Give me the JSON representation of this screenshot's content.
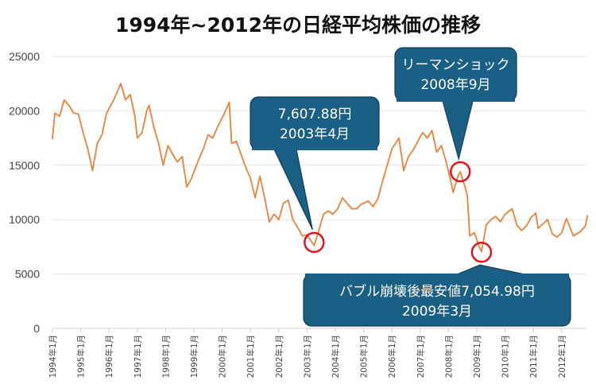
{
  "chart_data": {
    "type": "line",
    "title": "1994年~2012年の日経平均株価の推移",
    "xlabel": "",
    "ylabel": "",
    "ylim": [
      0,
      25000
    ],
    "yticks": [
      0,
      5000,
      10000,
      15000,
      20000,
      25000
    ],
    "xtick_labels": [
      "1994年1月",
      "1995年1月",
      "1996年1月",
      "1997年1月",
      "1998年1月",
      "1999年1月",
      "2000年1月",
      "2001年1月",
      "2002年1月",
      "2003年1月",
      "2004年1月",
      "2005年1月",
      "2006年1月",
      "2007年1月",
      "2008年1月",
      "2009年1月",
      "2010年1月",
      "2011年1月",
      "2012年1月"
    ],
    "grid": "horizontal",
    "line_color": "#e8823a",
    "points": [
      [
        "1994-01",
        17400
      ],
      [
        "1994-02",
        19800
      ],
      [
        "1994-04",
        19500
      ],
      [
        "1994-06",
        21000
      ],
      [
        "1994-08",
        20500
      ],
      [
        "1994-10",
        19800
      ],
      [
        "1994-12",
        19700
      ],
      [
        "1995-02",
        18000
      ],
      [
        "1995-04",
        16500
      ],
      [
        "1995-06",
        14500
      ],
      [
        "1995-08",
        17000
      ],
      [
        "1995-10",
        17800
      ],
      [
        "1995-12",
        19800
      ],
      [
        "1996-03",
        21000
      ],
      [
        "1996-06",
        22500
      ],
      [
        "1996-08",
        21000
      ],
      [
        "1996-10",
        21500
      ],
      [
        "1996-12",
        19500
      ],
      [
        "1997-01",
        17500
      ],
      [
        "1997-03",
        18000
      ],
      [
        "1997-05",
        20000
      ],
      [
        "1997-06",
        20500
      ],
      [
        "1997-08",
        18500
      ],
      [
        "1997-10",
        17000
      ],
      [
        "1997-12",
        15000
      ],
      [
        "1998-02",
        16800
      ],
      [
        "1998-04",
        16000
      ],
      [
        "1998-06",
        15300
      ],
      [
        "1998-08",
        15800
      ],
      [
        "1998-10",
        13000
      ],
      [
        "1998-12",
        13800
      ],
      [
        "1999-03",
        15500
      ],
      [
        "1999-05",
        16500
      ],
      [
        "1999-07",
        17800
      ],
      [
        "1999-09",
        17500
      ],
      [
        "1999-11",
        18500
      ],
      [
        "2000-02",
        19800
      ],
      [
        "2000-04",
        20800
      ],
      [
        "2000-05",
        17000
      ],
      [
        "2000-07",
        17200
      ],
      [
        "2000-09",
        16000
      ],
      [
        "2000-11",
        14800
      ],
      [
        "2001-01",
        13800
      ],
      [
        "2001-03",
        12000
      ],
      [
        "2001-05",
        14000
      ],
      [
        "2001-07",
        12000
      ],
      [
        "2001-09",
        9800
      ],
      [
        "2001-11",
        10500
      ],
      [
        "2002-01",
        10000
      ],
      [
        "2002-03",
        11500
      ],
      [
        "2002-05",
        11800
      ],
      [
        "2002-07",
        10000
      ],
      [
        "2002-09",
        9300
      ],
      [
        "2002-11",
        8500
      ],
      [
        "2003-01",
        8600
      ],
      [
        "2003-04",
        7607.88
      ],
      [
        "2003-06",
        9000
      ],
      [
        "2003-08",
        10500
      ],
      [
        "2003-10",
        10800
      ],
      [
        "2003-12",
        10500
      ],
      [
        "2004-02",
        11000
      ],
      [
        "2004-04",
        12000
      ],
      [
        "2004-06",
        11500
      ],
      [
        "2004-08",
        11000
      ],
      [
        "2004-10",
        11000
      ],
      [
        "2004-12",
        11400
      ],
      [
        "2005-03",
        11700
      ],
      [
        "2005-05",
        11200
      ],
      [
        "2005-07",
        11900
      ],
      [
        "2005-09",
        13500
      ],
      [
        "2005-11",
        15000
      ],
      [
        "2006-01",
        16500
      ],
      [
        "2006-04",
        17500
      ],
      [
        "2006-06",
        14500
      ],
      [
        "2006-08",
        15800
      ],
      [
        "2006-10",
        16400
      ],
      [
        "2006-12",
        17200
      ],
      [
        "2007-02",
        18000
      ],
      [
        "2007-04",
        17500
      ],
      [
        "2007-06",
        18200
      ],
      [
        "2007-08",
        16200
      ],
      [
        "2007-10",
        16800
      ],
      [
        "2007-12",
        15300
      ],
      [
        "2008-02",
        13500
      ],
      [
        "2008-03",
        12500
      ],
      [
        "2008-05",
        14000
      ],
      [
        "2008-06",
        14400
      ],
      [
        "2008-08",
        13000
      ],
      [
        "2008-09",
        12200
      ],
      [
        "2008-10",
        8500
      ],
      [
        "2008-12",
        8800
      ],
      [
        "2009-02",
        7500
      ],
      [
        "2009-03",
        7054.98
      ],
      [
        "2009-05",
        9500
      ],
      [
        "2009-07",
        10000
      ],
      [
        "2009-09",
        10300
      ],
      [
        "2009-11",
        9800
      ],
      [
        "2010-01",
        10500
      ],
      [
        "2010-04",
        11000
      ],
      [
        "2010-06",
        9500
      ],
      [
        "2010-08",
        9000
      ],
      [
        "2010-10",
        9400
      ],
      [
        "2010-12",
        10200
      ],
      [
        "2011-02",
        10600
      ],
      [
        "2011-03",
        9200
      ],
      [
        "2011-05",
        9600
      ],
      [
        "2011-07",
        10000
      ],
      [
        "2011-09",
        8700
      ],
      [
        "2011-11",
        8400
      ],
      [
        "2012-01",
        8800
      ],
      [
        "2012-03",
        10100
      ],
      [
        "2012-06",
        8500
      ],
      [
        "2012-09",
        8900
      ],
      [
        "2012-11",
        9400
      ],
      [
        "2012-12",
        10400
      ]
    ],
    "annotations": [
      {
        "lines": [
          "7,607.88円",
          "2003年4月"
        ],
        "date": "2003-04",
        "value": 7900
      },
      {
        "lines": [
          "リーマンショック",
          "2008年9月"
        ],
        "date": "2008-06",
        "value": 14400
      },
      {
        "lines": [
          "バブル崩壊後最安値7,054.98円",
          "2009年3月"
        ],
        "date": "2009-03",
        "value": 7000
      }
    ],
    "annotation_fill": "#1a5f84",
    "marker_color": "#e0141b"
  }
}
